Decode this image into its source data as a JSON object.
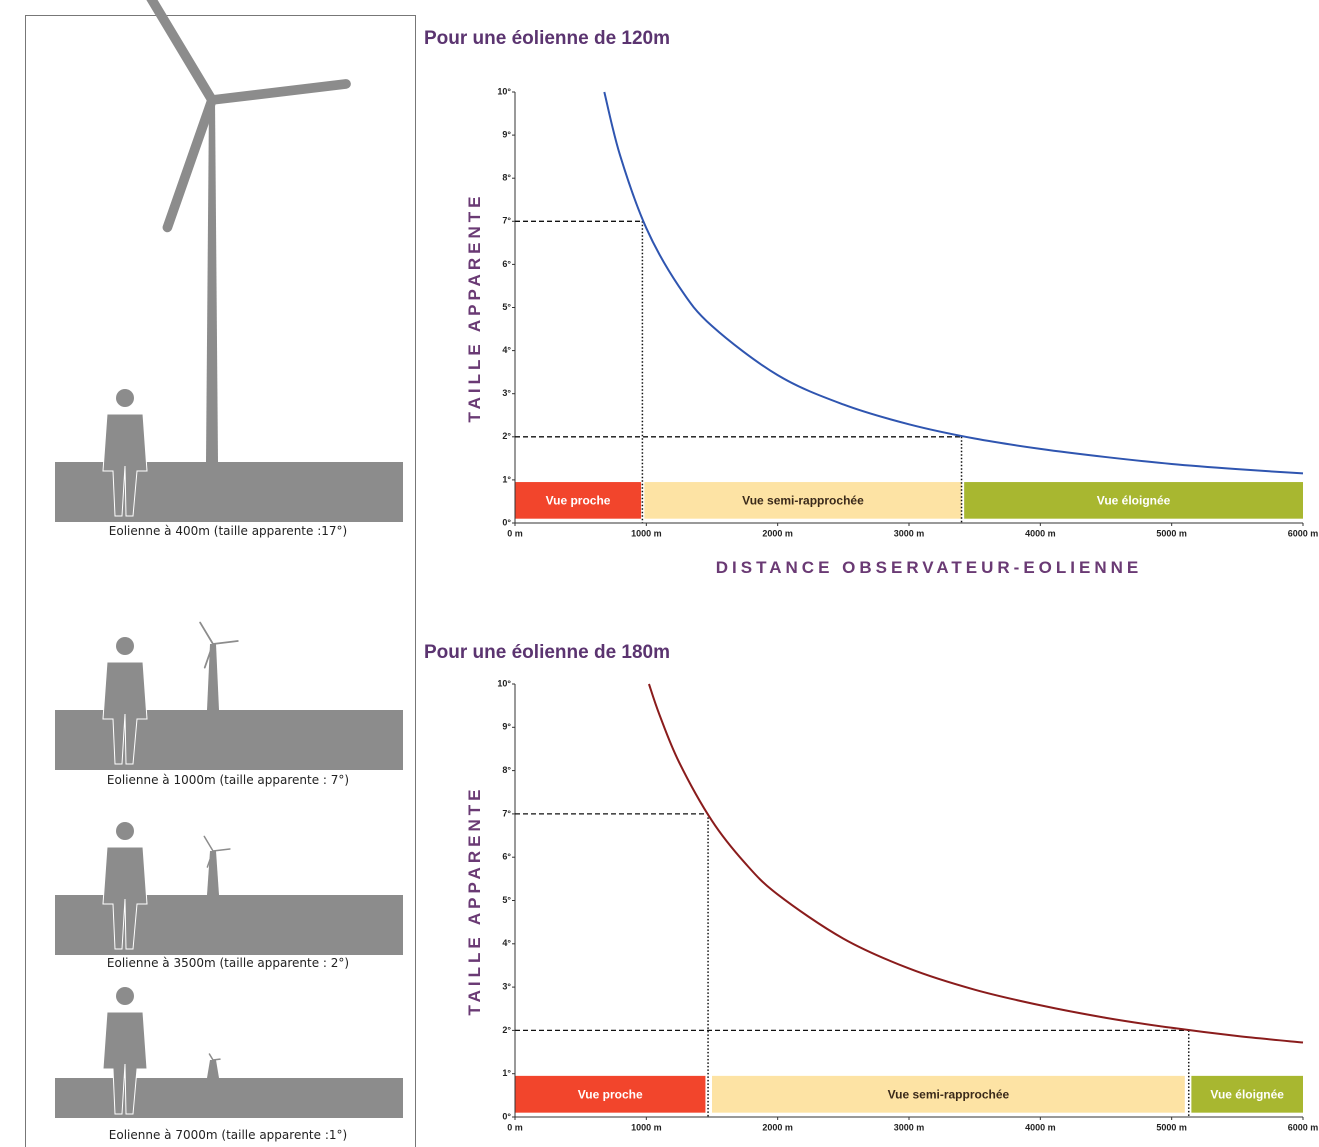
{
  "chart_data": [
    {
      "type": "line",
      "title": "Pour une éolienne de 120m",
      "y_label": "TAILLE APPARENTE",
      "x_label": "DISTANCE OBSERVATEUR-EOLIENNE",
      "color": "#2f55b0",
      "x": [
        680,
        800,
        1000,
        1250,
        1500,
        2000,
        2500,
        3000,
        3500,
        4000,
        4500,
        5000,
        5500,
        6000
      ],
      "values": [
        10.0,
        8.53,
        6.84,
        5.48,
        4.57,
        3.43,
        2.75,
        2.29,
        1.96,
        1.72,
        1.53,
        1.37,
        1.25,
        1.15
      ],
      "xlim": [
        0,
        6000
      ],
      "xticks": [
        {
          "value": 0,
          "label": "0 m"
        },
        {
          "value": 1000,
          "label": "1000 m"
        },
        {
          "value": 2000,
          "label": "2000 m"
        },
        {
          "value": 3000,
          "label": "3000 m"
        },
        {
          "value": 4000,
          "label": "4000 m"
        },
        {
          "value": 5000,
          "label": "5000 m"
        },
        {
          "value": 6000,
          "label": "6000 m"
        }
      ],
      "ylim": [
        0,
        10
      ],
      "yticks": [
        {
          "value": 0,
          "label": "0°"
        },
        {
          "value": 1,
          "label": "1°"
        },
        {
          "value": 2,
          "label": "2°"
        },
        {
          "value": 3,
          "label": "3°"
        },
        {
          "value": 4,
          "label": "4°"
        },
        {
          "value": 5,
          "label": "5°"
        },
        {
          "value": 6,
          "label": "6°"
        },
        {
          "value": 7,
          "label": "7°"
        },
        {
          "value": 8,
          "label": "8°"
        },
        {
          "value": 9,
          "label": "9°"
        },
        {
          "value": 10,
          "label": "10°"
        }
      ],
      "reference_lines": [
        {
          "x": 970,
          "y": 7
        },
        {
          "x": 3400,
          "y": 2
        }
      ],
      "zones": [
        {
          "label": "Vue proche",
          "start": 0,
          "end": 960,
          "color": "#f2452c"
        },
        {
          "label": "Vue semi-rapprochée",
          "start": 985,
          "end": 3400,
          "color": "#fde3a4"
        },
        {
          "label": "Vue éloignée",
          "start": 3420,
          "end": 6000,
          "color": "#a8b730"
        }
      ]
    },
    {
      "type": "line",
      "title": "Pour une éolienne de 180m",
      "y_label": "TAILLE APPARENTE",
      "color": "#8a1c1c",
      "x": [
        1020,
        1100,
        1250,
        1500,
        1750,
        2000,
        2500,
        3000,
        3500,
        4000,
        4500,
        5000,
        5500,
        6000
      ],
      "values": [
        10.0,
        9.29,
        8.19,
        6.84,
        5.87,
        5.14,
        4.12,
        3.43,
        2.94,
        2.58,
        2.29,
        2.06,
        1.87,
        1.72
      ],
      "xlim": [
        0,
        6000
      ],
      "xticks": [
        {
          "value": 0,
          "label": "0 m"
        },
        {
          "value": 1000,
          "label": "1000 m"
        },
        {
          "value": 2000,
          "label": "2000 m"
        },
        {
          "value": 3000,
          "label": "3000 m"
        },
        {
          "value": 4000,
          "label": "4000 m"
        },
        {
          "value": 5000,
          "label": "5000 m"
        },
        {
          "value": 6000,
          "label": "6000 m"
        }
      ],
      "ylim": [
        0,
        10
      ],
      "yticks": [
        {
          "value": 0,
          "label": "0°"
        },
        {
          "value": 1,
          "label": "1°"
        },
        {
          "value": 2,
          "label": "2°"
        },
        {
          "value": 3,
          "label": "3°"
        },
        {
          "value": 4,
          "label": "4°"
        },
        {
          "value": 5,
          "label": "5°"
        },
        {
          "value": 6,
          "label": "6°"
        },
        {
          "value": 7,
          "label": "7°"
        },
        {
          "value": 8,
          "label": "8°"
        },
        {
          "value": 9,
          "label": "9°"
        },
        {
          "value": 10,
          "label": "10°"
        }
      ],
      "reference_lines": [
        {
          "x": 1470,
          "y": 7
        },
        {
          "x": 5130,
          "y": 2
        }
      ],
      "zones": [
        {
          "label": "Vue proche",
          "start": 0,
          "end": 1450,
          "color": "#f2452c"
        },
        {
          "label": "Vue semi-rapprochée",
          "start": 1500,
          "end": 5100,
          "color": "#fde3a4"
        },
        {
          "label": "Vue éloignée",
          "start": 5150,
          "end": 6000,
          "color": "#a8b730"
        }
      ]
    }
  ],
  "illustrations": [
    {
      "caption": "Eolienne à 400m (taille apparente :17°)"
    },
    {
      "caption": "Eolienne à 1000m (taille apparente : 7°)"
    },
    {
      "caption": "Eolienne à 3500m (taille apparente : 2°)"
    },
    {
      "caption": "Eolienne à 7000m (taille apparente :1°)"
    }
  ]
}
